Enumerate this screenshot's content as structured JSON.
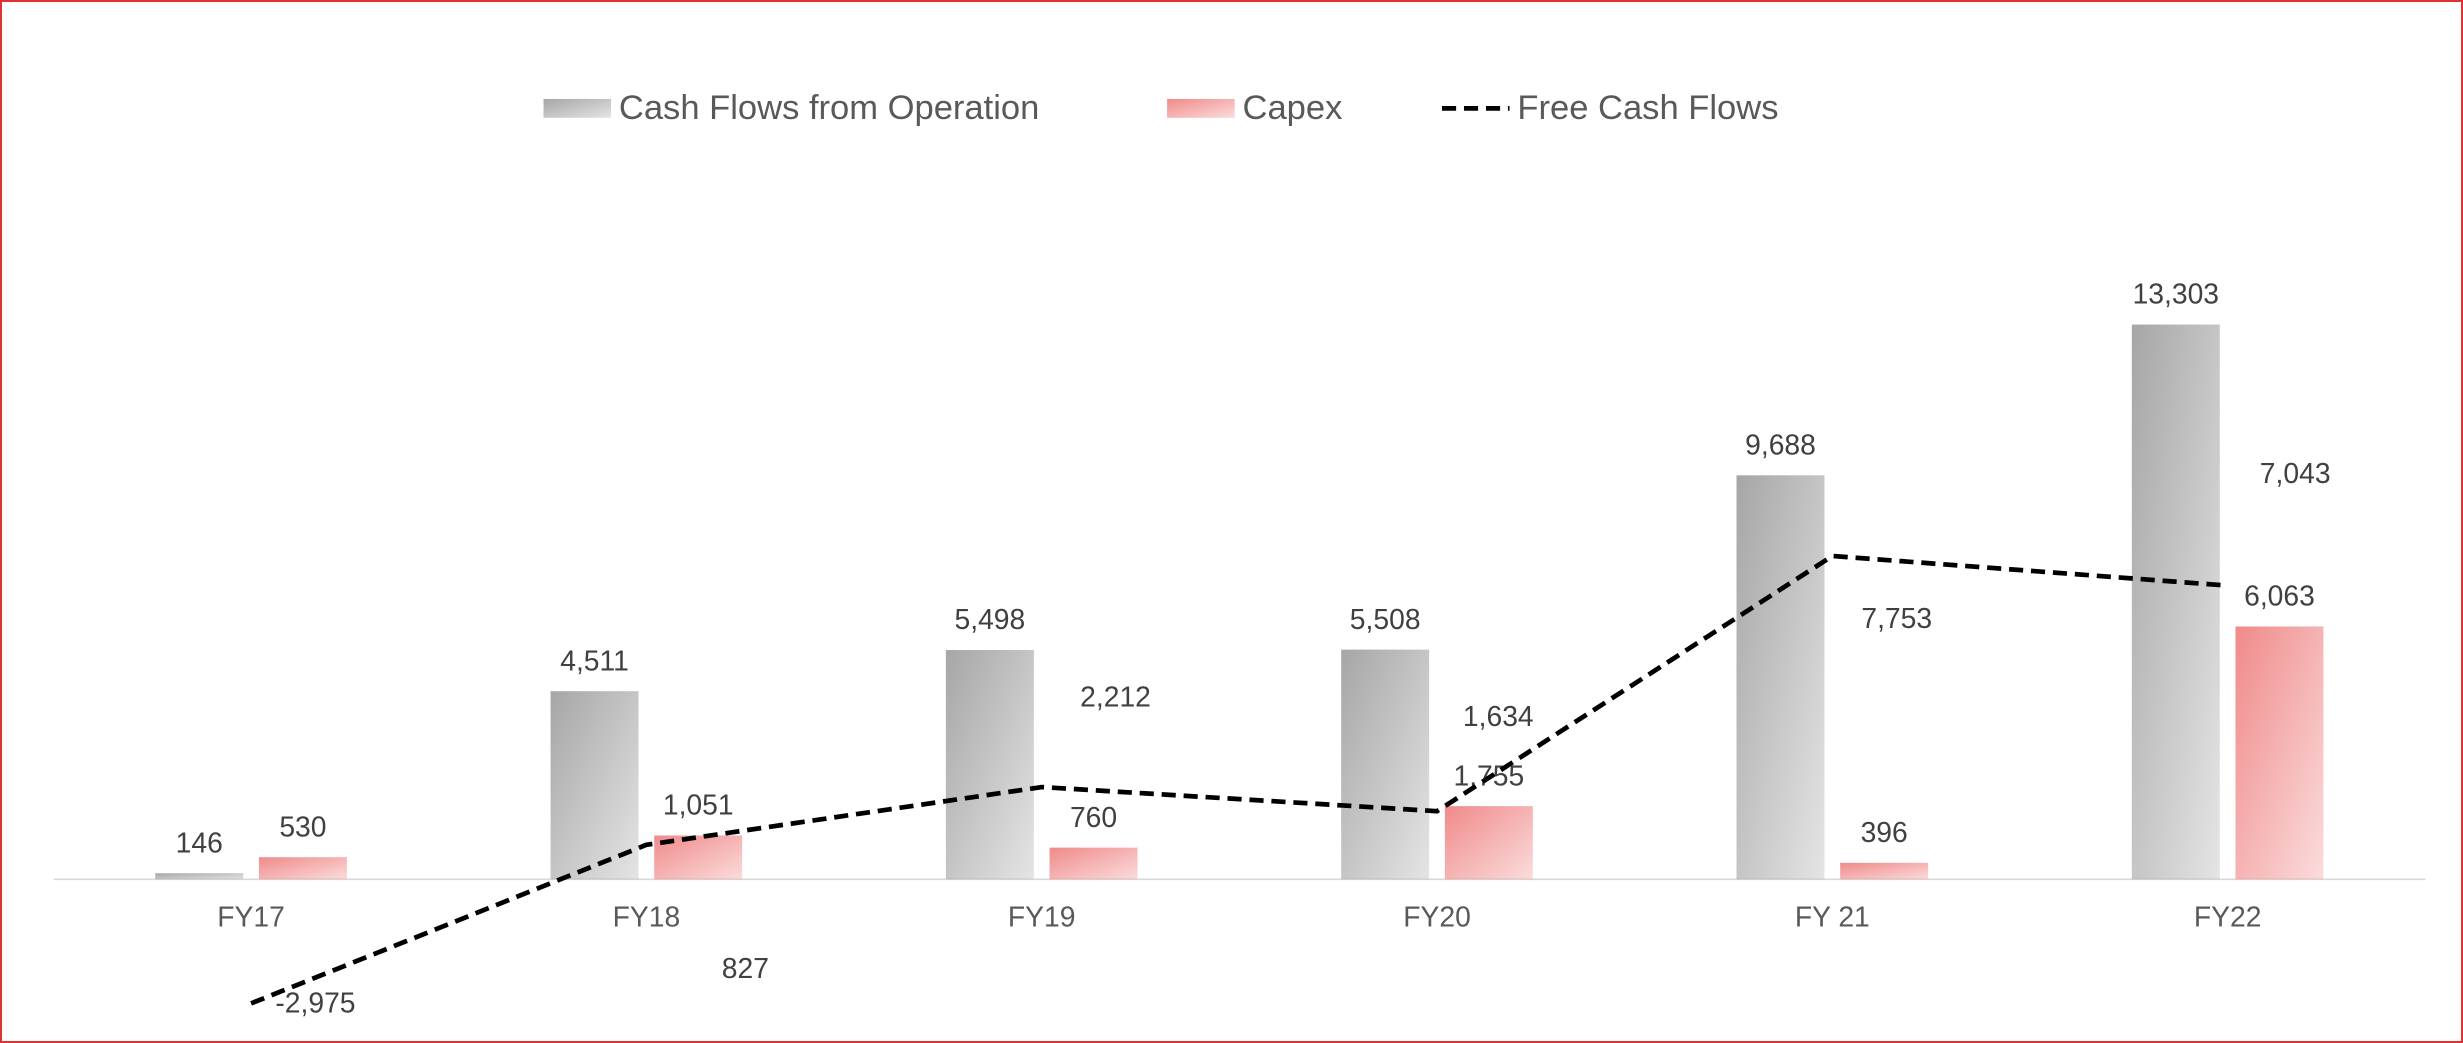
{
  "chart_data": {
    "type": "bar",
    "categories": [
      "FY17",
      "FY18",
      "FY19",
      "FY20",
      "FY 21",
      "FY22"
    ],
    "series": [
      {
        "name": "Cash Flows from Operation",
        "type": "bar",
        "color": "#a6a6a6",
        "values": [
          146,
          4511,
          5498,
          5508,
          9688,
          13303
        ],
        "value_labels": [
          "146",
          "4,511",
          "5,498",
          "5,508",
          "9,688",
          "13,303"
        ]
      },
      {
        "name": "Capex",
        "type": "bar",
        "color": "#f08a8a",
        "values": [
          530,
          1051,
          760,
          1755,
          396,
          6063
        ],
        "value_labels": [
          "530",
          "1,051",
          "760",
          "1,755",
          "396",
          "6,063"
        ]
      },
      {
        "name": "Free Cash Flows",
        "type": "line",
        "color": "#000000",
        "values": [
          -2975,
          827,
          2212,
          1634,
          7753,
          7043
        ],
        "value_labels": [
          "-2,975",
          "827",
          "2,212",
          "1,634",
          "7,753",
          "7,043"
        ]
      }
    ],
    "ylim": [
      -4000,
      16000
    ],
    "legend": "top"
  }
}
